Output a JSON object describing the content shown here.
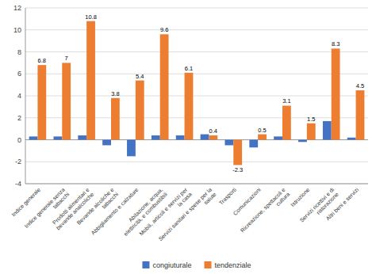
{
  "chart_data": {
    "type": "bar",
    "categories": [
      "Indice generale",
      "Indice generale senza\ntabacchi",
      "Prodotti alimentari e\nbevande analcoliche",
      "Bevande alcoliche e\ntabacchi",
      "Abbigliamento e calzature",
      "Abitazione, acqua,\nelettricità, e combustibili",
      "Mobili, articoli e servizi per\nla casa",
      "Servizi sanitari e spese per la\nsalute",
      "Trasporti",
      "Comunicazioni",
      "Ricreazione, spettacoli e\ncultura",
      "Istruzione",
      "Servizi ricettivi e di\nristorazione",
      "Altri beni e servizi"
    ],
    "series": [
      {
        "name": "congiuturale",
        "color": "#4472c4",
        "values": [
          0.3,
          0.3,
          0.4,
          -0.5,
          -1.5,
          0.4,
          0.4,
          0.5,
          -0.5,
          -0.7,
          0.3,
          -0.2,
          1.7,
          0.2
        ]
      },
      {
        "name": "tendenziale",
        "color": "#ed7d31",
        "data_labels": true,
        "values": [
          6.8,
          7.0,
          10.8,
          3.8,
          5.4,
          9.6,
          6.1,
          0.4,
          -2.3,
          0.5,
          3.1,
          1.5,
          8.3,
          4.5
        ]
      }
    ],
    "ylim": [
      -4,
      12
    ],
    "yticks": [
      -4,
      -2,
      0,
      2,
      4,
      6,
      8,
      10,
      12
    ],
    "grid": true,
    "legend": "bottom"
  }
}
